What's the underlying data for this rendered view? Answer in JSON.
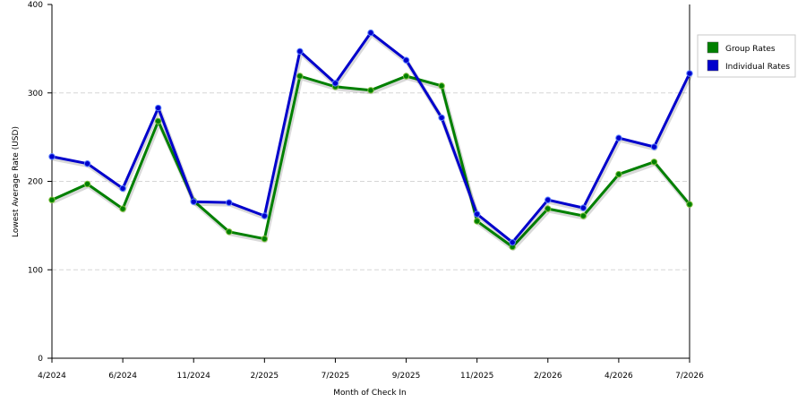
{
  "chart_data": {
    "type": "line",
    "xlabel": "Month of Check In",
    "ylabel": "Lowest Average Rate (USD)",
    "ylim": [
      0,
      400
    ],
    "yticks": [
      0,
      100,
      200,
      300,
      400
    ],
    "grid": "horizontal dashed",
    "legend_position": "right",
    "x_tick_labels": [
      "4/2024",
      "6/2024",
      "11/2024",
      "2/2025",
      "7/2025",
      "9/2025",
      "11/2025",
      "2/2026",
      "4/2026",
      "7/2026"
    ],
    "x_tick_point_index": [
      0,
      2,
      4,
      6,
      8,
      10,
      12,
      14,
      16,
      18
    ],
    "series": [
      {
        "name": "Group Rates",
        "color": "#008000",
        "values": [
          179,
          197,
          169,
          268,
          178,
          143,
          135,
          319,
          307,
          303,
          319,
          308,
          155,
          126,
          169,
          161,
          208,
          222,
          174
        ]
      },
      {
        "name": "Individual Rates",
        "color": "#0000cc",
        "values": [
          228,
          220,
          192,
          283,
          177,
          176,
          161,
          347,
          311,
          368,
          337,
          272,
          163,
          131,
          179,
          170,
          249,
          239,
          322
        ]
      }
    ]
  }
}
